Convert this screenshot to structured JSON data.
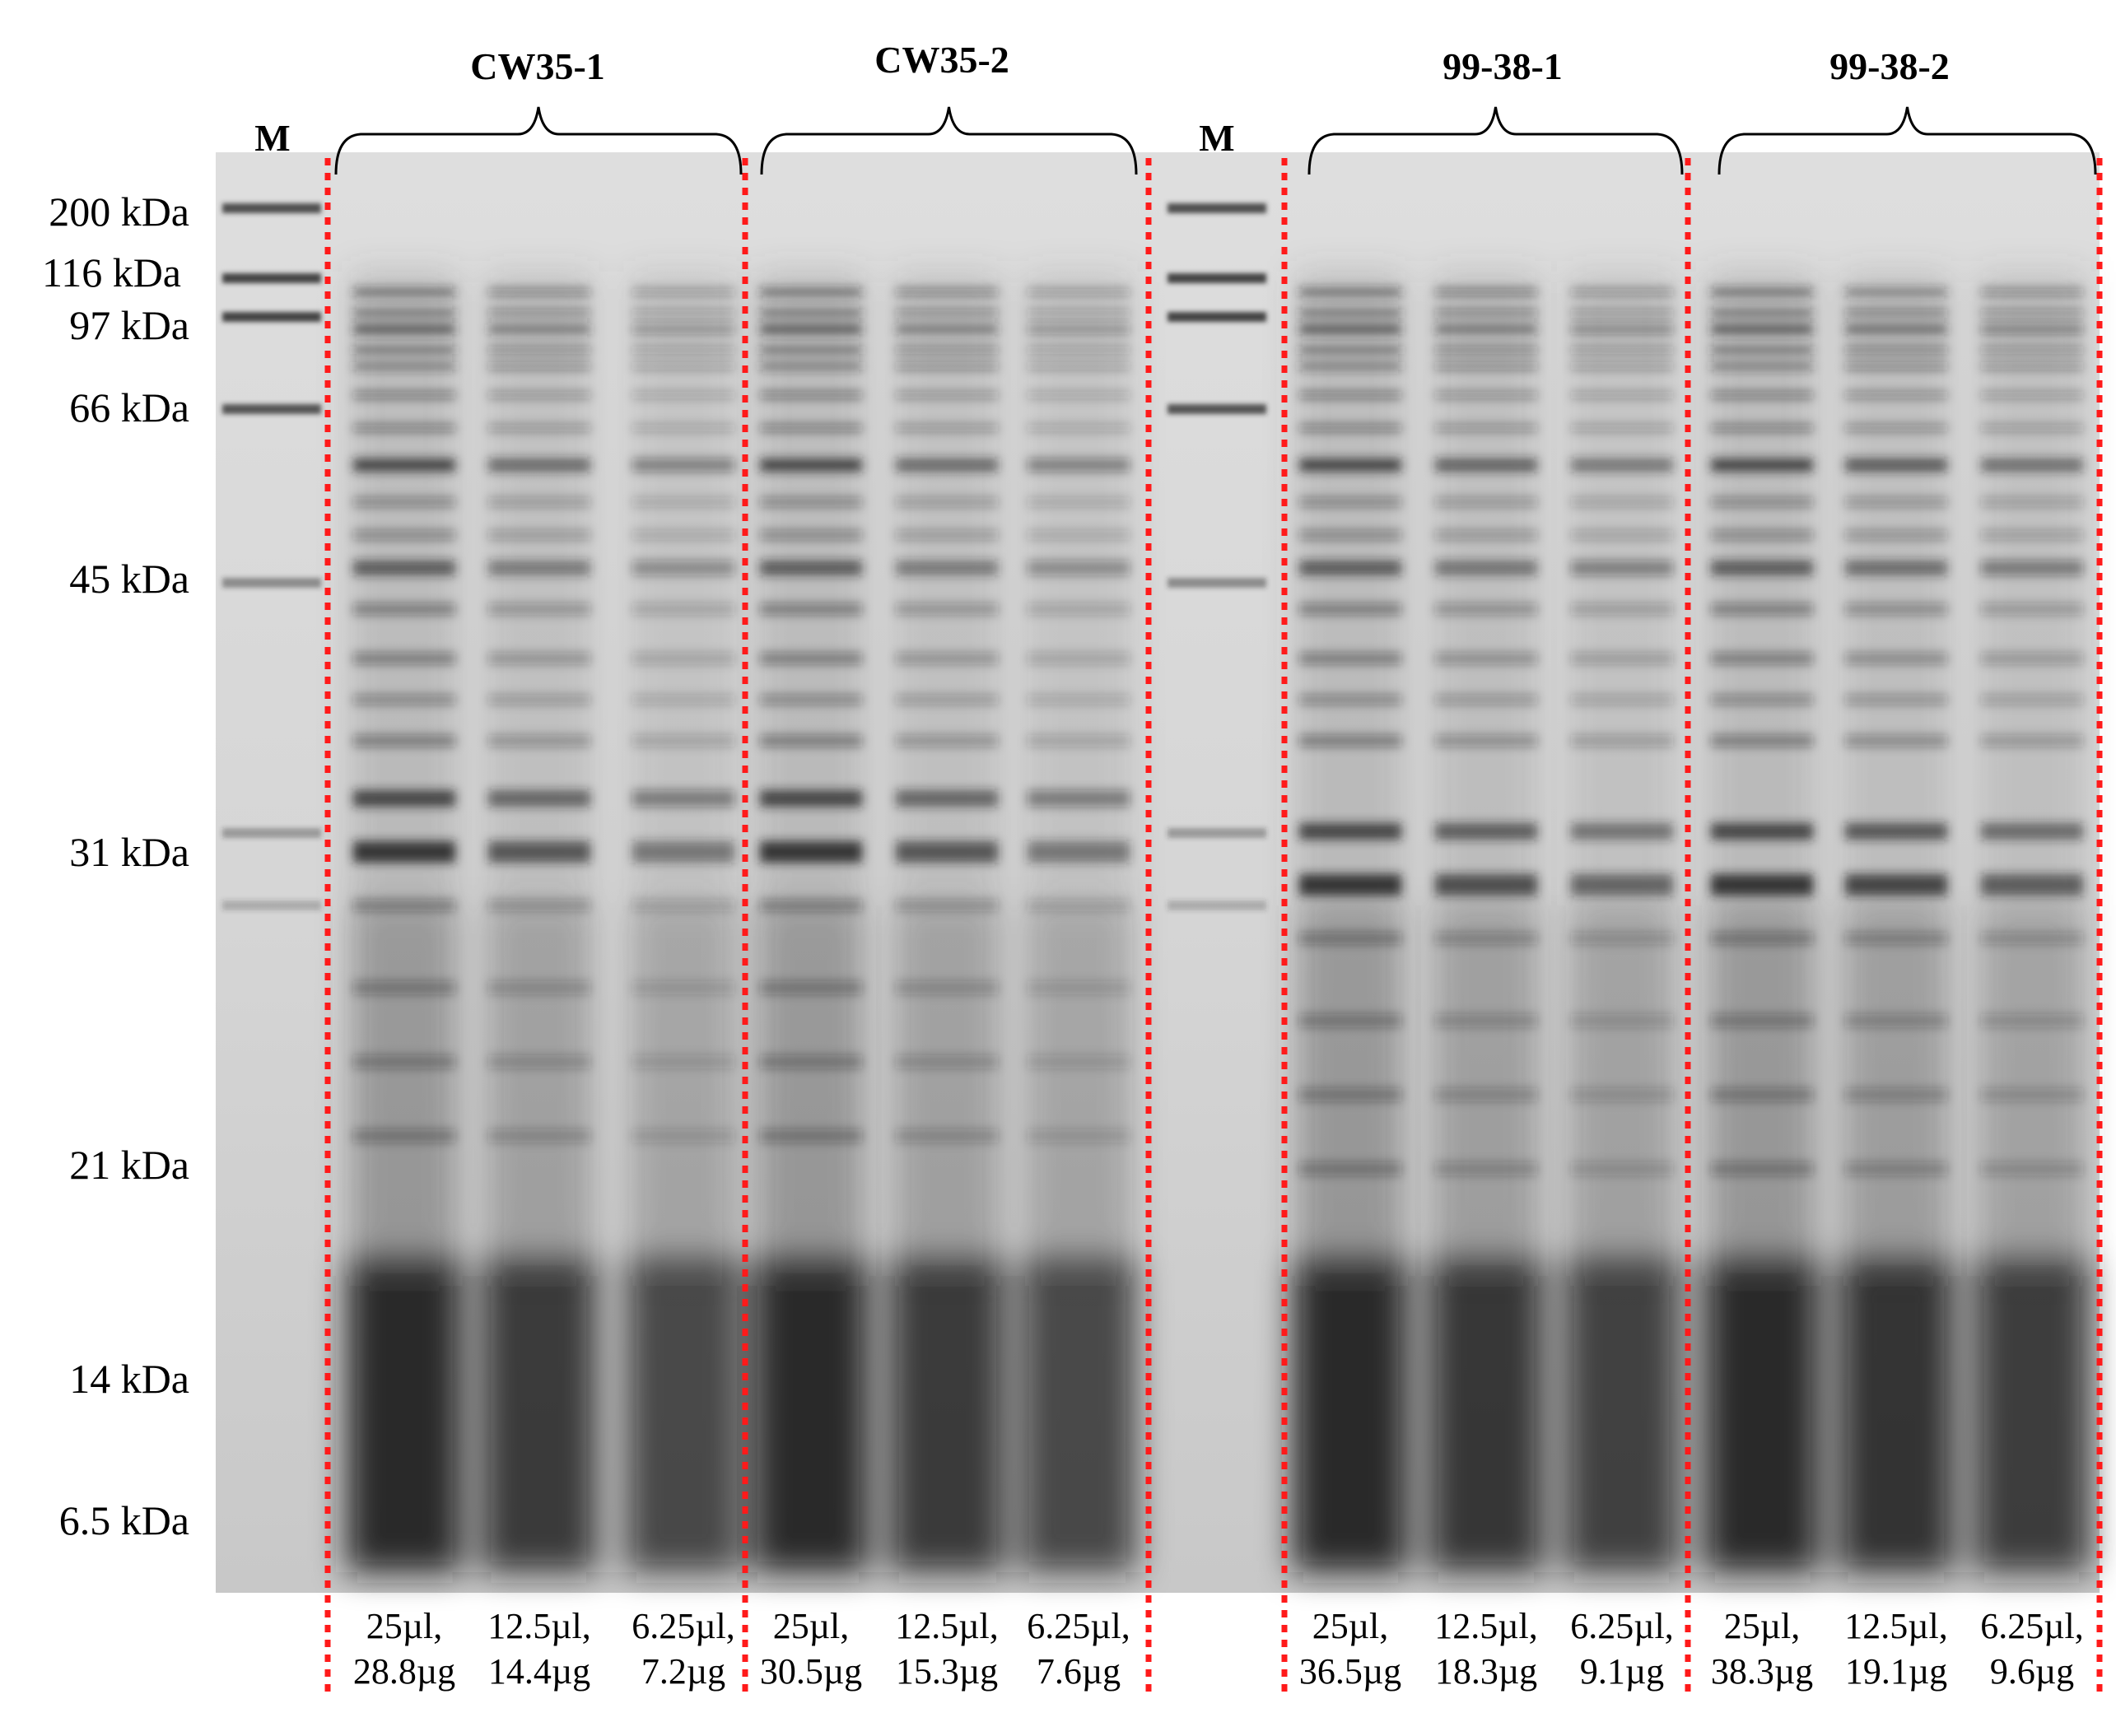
{
  "marker_label": "M",
  "molecular_weights": [
    "200 kDa",
    "116 kDa",
    "97 kDa",
    "66 kDa",
    "45 kDa",
    "31 kDa",
    "21 kDa",
    "14 kDa",
    "6.5 kDa"
  ],
  "groups": [
    "CW35-1",
    "CW35-2",
    "99-38-1",
    "99-38-2"
  ],
  "lanes": [
    {
      "volume": "25µl,",
      "mass": "28.8µg"
    },
    {
      "volume": "12.5µl,",
      "mass": "14.4µg"
    },
    {
      "volume": "6.25µl,",
      "mass": "7.2µg"
    },
    {
      "volume": "25µl,",
      "mass": "30.5µg"
    },
    {
      "volume": "12.5µl,",
      "mass": "15.3µg"
    },
    {
      "volume": "6.25µl,",
      "mass": "7.6µg"
    },
    {
      "volume": "25µl,",
      "mass": "36.5µg"
    },
    {
      "volume": "12.5µl,",
      "mass": "18.3µg"
    },
    {
      "volume": "6.25µl,",
      "mass": "9.1µg"
    },
    {
      "volume": "25µl,",
      "mass": "38.3µg"
    },
    {
      "volume": "12.5µl,",
      "mass": "19.1µg"
    },
    {
      "volume": "6.25µl,",
      "mass": "9.6µg"
    }
  ],
  "colors": {
    "divider": "#ff1a1a",
    "gel_background": "#d8d8d8",
    "band": "#1e1e1e"
  }
}
